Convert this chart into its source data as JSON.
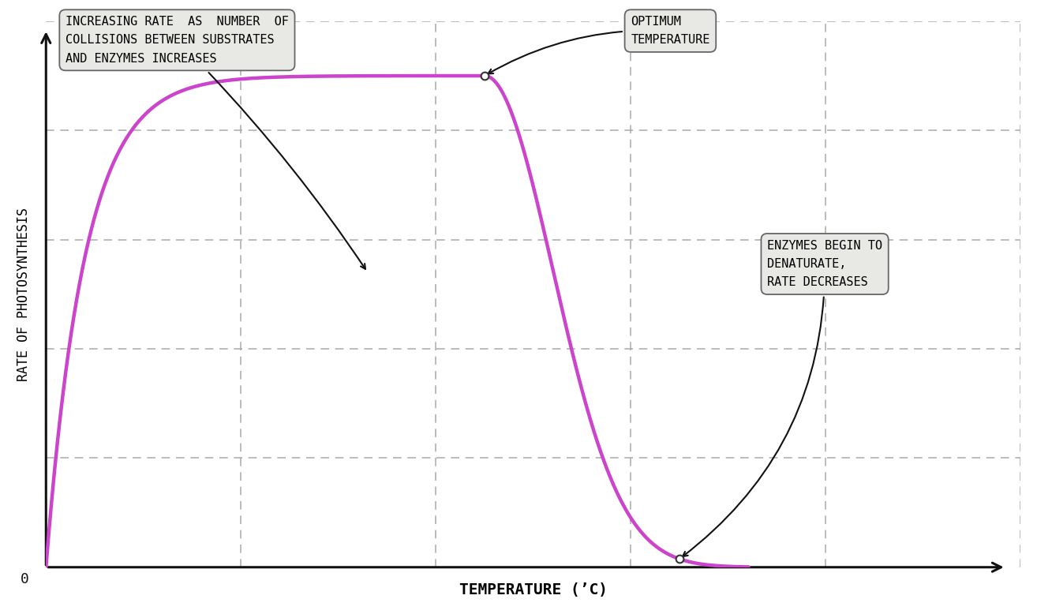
{
  "background_color": "#ffffff",
  "curve_color": "#cc44cc",
  "curve_linewidth": 3.2,
  "axis_color": "#111111",
  "grid_color": "#aaaaaa",
  "grid_linestyle": "--",
  "grid_linewidth": 1.1,
  "xlabel": "TEMPERATURE (ʼC)",
  "ylabel": "RATE OF PHOTOSYNTHESIS",
  "xlabel_fontsize": 14,
  "ylabel_fontsize": 12,
  "annotation1_text": "INCREASING RATE  AS  NUMBER  OF\nCOLLISIONS BETWEEN SUBSTRATES\nAND ENZYMES INCREASES",
  "annotation2_text": "OPTIMUM\nTEMPERATURE",
  "annotation3_text": "ENZYMES BEGIN TO\nDENATURATE,\nRATE DECREASES",
  "font_family": "monospace",
  "annotation_fontsize": 11,
  "box_bg_color": "#e8e8e4",
  "box_edge_color": "#666666",
  "origin_label": "0",
  "xlim": [
    0,
    10
  ],
  "ylim": [
    0,
    10
  ],
  "peak_x": 4.5,
  "peak_y": 9.0,
  "end_x": 7.2
}
